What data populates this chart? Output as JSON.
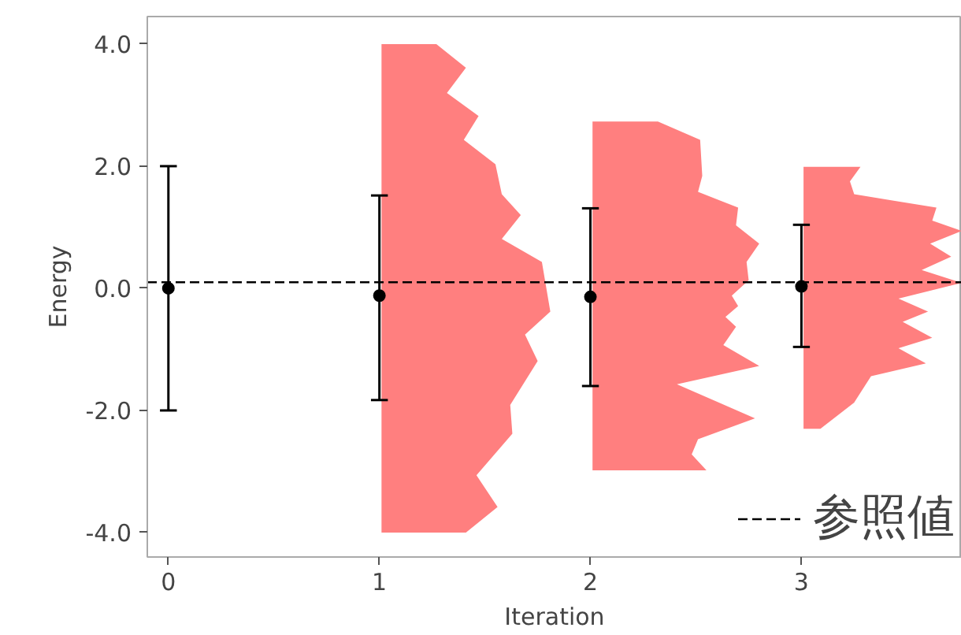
{
  "chart_data": {
    "type": "scatter",
    "xlabel": "Iteration",
    "ylabel": "Energy",
    "xlim": [
      -0.1,
      3.76
    ],
    "ylim": [
      -4.4,
      4.45
    ],
    "xticks": [
      0,
      1,
      2,
      3
    ],
    "yticks": [
      {
        "value": -4,
        "label": "-4.0"
      },
      {
        "value": -2,
        "label": "-2.0"
      },
      {
        "value": 0,
        "label": "0.0"
      },
      {
        "value": 2,
        "label": "2.0"
      },
      {
        "value": 4,
        "label": "4.0"
      }
    ],
    "grid": false,
    "legend": "bottom right",
    "ref_lines": [
      {
        "axis": "y",
        "value": 0.1,
        "label": "参照値",
        "color": "#000000",
        "line_style": "dashed"
      }
    ],
    "series": [
      {
        "color": "#000000",
        "marker": "circle",
        "x": [
          0,
          1,
          2,
          3
        ],
        "values": [
          0,
          -0.12,
          -0.14,
          0.03
        ],
        "errors": [
          2,
          [
            -1.83,
            1.52
          ],
          [
            -1.6,
            1.31
          ],
          [
            -0.96,
            1.04
          ]
        ]
      },
      {
        "type": "area",
        "color": "#ff7f7f",
        "x": [
          1.01,
          1.27,
          1.41,
          1.32,
          1.47,
          1.4,
          1.55,
          1.58,
          1.67,
          1.58,
          1.77,
          1.81,
          1.69,
          1.75,
          1.62,
          1.63,
          1.46,
          1.56,
          1.41,
          1.01
        ],
        "values": [
          4.0,
          4.0,
          3.61,
          3.2,
          2.82,
          2.43,
          2.03,
          1.54,
          1.2,
          0.81,
          0.43,
          -0.38,
          -0.76,
          -1.19,
          -1.91,
          -2.38,
          -3.06,
          -3.58,
          -4.0,
          -4.0
        ]
      },
      {
        "type": "area",
        "color": "#ff7f7f",
        "x": [
          2.01,
          2.32,
          2.52,
          2.53,
          2.51,
          2.7,
          2.69,
          2.8,
          2.74,
          2.75,
          2.67,
          2.7,
          2.64,
          2.69,
          2.63,
          2.8,
          2.41,
          2.78,
          2.51,
          2.48,
          2.55,
          2.01
        ],
        "values": [
          2.73,
          2.73,
          2.43,
          1.84,
          1.58,
          1.32,
          1.03,
          0.73,
          0.43,
          0.13,
          -0.12,
          -0.29,
          -0.47,
          -0.63,
          -0.93,
          -1.27,
          -1.57,
          -2.13,
          -2.47,
          -2.72,
          -2.98,
          -2.98
        ]
      },
      {
        "type": "area",
        "color": "#ff7f7f",
        "x": [
          3.01,
          3.28,
          3.23,
          3.25,
          3.64,
          3.62,
          3.76,
          3.61,
          3.71,
          3.57,
          3.76,
          3.46,
          3.6,
          3.48,
          3.62,
          3.46,
          3.59,
          3.33,
          3.25,
          3.09,
          3.01
        ],
        "values": [
          1.99,
          1.99,
          1.75,
          1.54,
          1.32,
          1.11,
          0.94,
          0.73,
          0.52,
          0.3,
          0.09,
          -0.17,
          -0.38,
          -0.55,
          -0.81,
          -0.98,
          -1.23,
          -1.44,
          -1.87,
          -2.3,
          -2.3
        ]
      }
    ]
  }
}
